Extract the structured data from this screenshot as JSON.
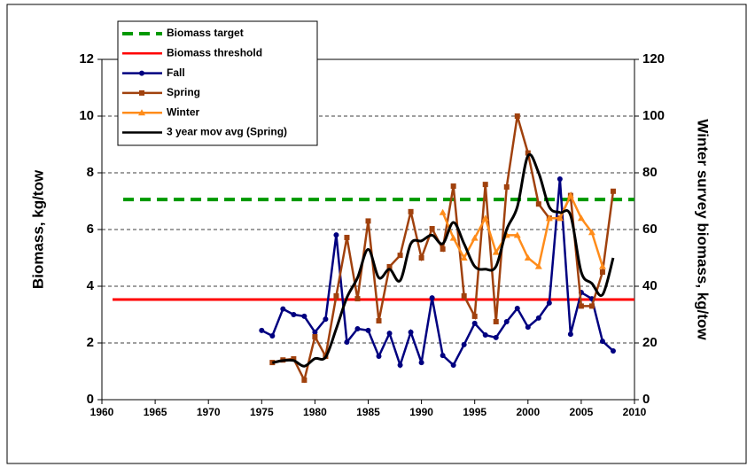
{
  "chart_data": {
    "type": "line",
    "y_label": "Biomass, kg/tow",
    "y2_label": "Winter survey biomass, kg/tow",
    "xlim": [
      1960,
      2010
    ],
    "xticks": [
      1960,
      1965,
      1970,
      1975,
      1980,
      1985,
      1990,
      1995,
      2000,
      2005,
      2010
    ],
    "ylim": [
      0,
      12
    ],
    "yticks": [
      0,
      2,
      4,
      6,
      8,
      10,
      12
    ],
    "y2lim": [
      0,
      120
    ],
    "y2ticks": [
      0,
      20,
      40,
      60,
      80,
      100,
      120
    ],
    "grid": true,
    "legend": "upper left",
    "series": [
      {
        "name": "Biomass target",
        "color": "#009900",
        "dash": true,
        "marker": null,
        "x": [
          1962,
          2010
        ],
        "values": [
          7.06,
          7.06
        ]
      },
      {
        "name": "Biomass threshold",
        "color": "#ff0000",
        "dash": false,
        "marker": null,
        "x": [
          1961,
          2010
        ],
        "values": [
          3.53,
          3.53
        ]
      },
      {
        "name": "Fall",
        "color": "#000080",
        "dash": false,
        "marker": "circle",
        "x": [
          1975,
          1976,
          1977,
          1978,
          1979,
          1980,
          1981,
          1982,
          1983,
          1984,
          1985,
          1986,
          1987,
          1988,
          1989,
          1990,
          1991,
          1992,
          1993,
          1994,
          1995,
          1996,
          1997,
          1998,
          1999,
          2000,
          2001,
          2002,
          2003,
          2004,
          2005,
          2006,
          2007,
          2008
        ],
        "values": [
          2.44,
          2.25,
          3.2,
          3.0,
          2.94,
          2.38,
          2.84,
          5.81,
          2.03,
          2.5,
          2.44,
          1.53,
          2.34,
          1.22,
          2.38,
          1.31,
          3.59,
          1.56,
          1.22,
          1.94,
          2.69,
          2.28,
          2.19,
          2.75,
          3.22,
          2.56,
          2.88,
          3.41,
          7.78,
          2.31,
          3.78,
          3.56,
          2.06,
          1.72
        ]
      },
      {
        "name": "Spring",
        "color": "#a0410d",
        "dash": false,
        "marker": "square",
        "x": [
          1976,
          1977,
          1978,
          1979,
          1980,
          1981,
          1982,
          1983,
          1984,
          1985,
          1986,
          1987,
          1988,
          1989,
          1990,
          1991,
          1992,
          1993,
          1994,
          1995,
          1996,
          1997,
          1998,
          1999,
          2000,
          2001,
          2002,
          2003,
          2004,
          2005,
          2006,
          2007,
          2008
        ],
        "values": [
          1.31,
          1.4,
          1.44,
          0.69,
          2.22,
          1.53,
          3.66,
          5.72,
          3.56,
          6.3,
          2.78,
          4.69,
          5.09,
          6.63,
          5.0,
          6.03,
          5.31,
          7.53,
          3.66,
          2.94,
          7.59,
          2.75,
          7.5,
          10.0,
          8.7,
          6.9,
          6.4,
          6.4,
          7.2,
          3.3,
          3.3,
          4.5,
          7.35
        ]
      },
      {
        "name": "Winter",
        "color": "#ff8c1a",
        "dash": false,
        "marker": "triangle",
        "axis": "y2",
        "x": [
          1992,
          1993,
          1994,
          1995,
          1996,
          1997,
          1998,
          1999,
          2000,
          2001,
          2002,
          2003,
          2004,
          2005,
          2006,
          2007
        ],
        "values": [
          66,
          57,
          50,
          57,
          64,
          52,
          58,
          58,
          50,
          47,
          64,
          64,
          72,
          64,
          59,
          47
        ]
      },
      {
        "name": "3 year mov avg (Spring)",
        "color": "#000000",
        "dash": false,
        "marker": null,
        "smooth": true,
        "x": [
          1976,
          1977,
          1978,
          1979,
          1980,
          1981,
          1982,
          1983,
          1984,
          1985,
          1986,
          1987,
          1988,
          1989,
          1990,
          1991,
          1992,
          1993,
          1994,
          1995,
          1996,
          1997,
          1998,
          1999,
          2000,
          2001,
          2002,
          2003,
          2004,
          2005,
          2006,
          2007,
          2008
        ],
        "values": [
          1.3,
          1.38,
          1.38,
          1.18,
          1.45,
          1.5,
          2.5,
          3.6,
          4.3,
          5.3,
          4.3,
          4.6,
          4.2,
          5.5,
          5.6,
          5.8,
          5.5,
          6.25,
          5.5,
          4.7,
          4.6,
          4.7,
          6.0,
          6.8,
          8.6,
          8.0,
          6.8,
          6.6,
          6.5,
          4.5,
          4.1,
          3.7,
          5.0
        ]
      }
    ]
  }
}
